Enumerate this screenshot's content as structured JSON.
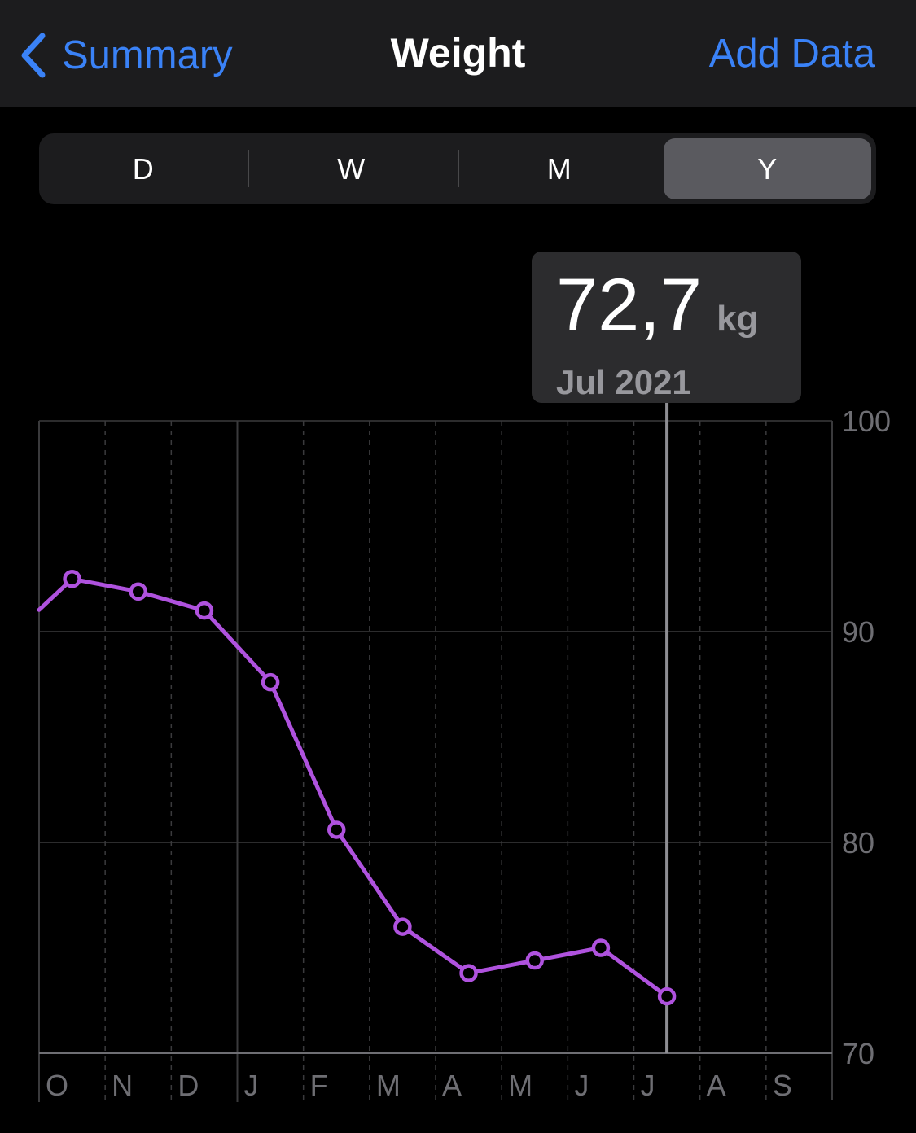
{
  "nav": {
    "back_label": "Summary",
    "title": "Weight",
    "action_label": "Add Data",
    "accent": "#3A82F7"
  },
  "segments": {
    "items": [
      "D",
      "W",
      "M",
      "Y"
    ],
    "selected": "Y"
  },
  "tooltip": {
    "value": "72,7",
    "unit": "kg",
    "date": "Jul 2021"
  },
  "chart_data": {
    "type": "line",
    "series_color": "#AF52DE",
    "x": [
      "O",
      "N",
      "D",
      "J",
      "F",
      "M",
      "A",
      "M",
      "J",
      "J",
      "A",
      "S"
    ],
    "series": [
      {
        "values": [
          92.5,
          91.9,
          91.0,
          87.6,
          80.6,
          76.0,
          73.8,
          74.4,
          75.0,
          72.7,
          null,
          null
        ]
      }
    ],
    "ylim": [
      70,
      100
    ],
    "yticks": [
      100,
      90,
      80,
      70
    ],
    "selected_index": 9,
    "grid": true
  }
}
